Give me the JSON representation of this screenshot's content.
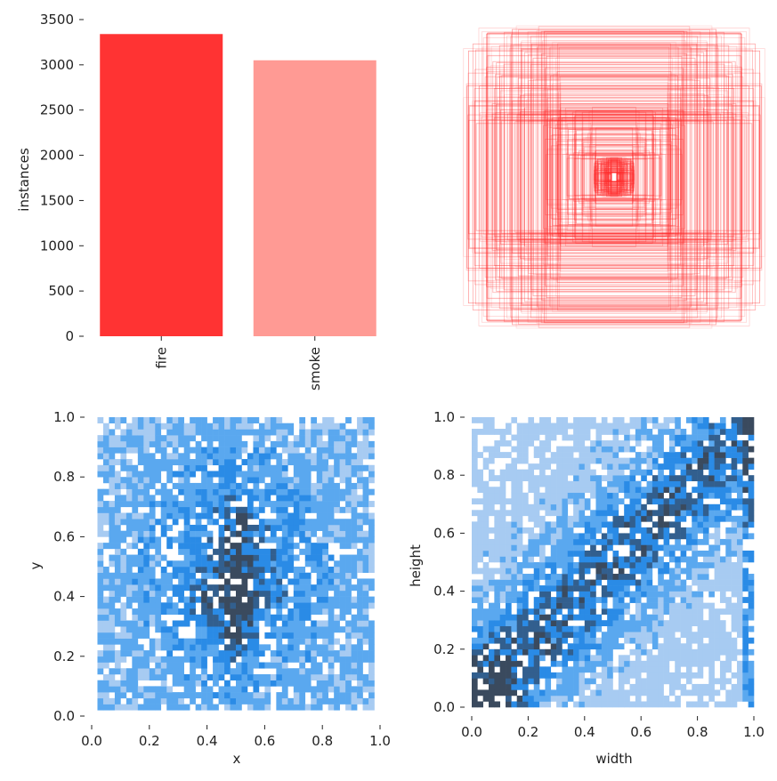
{
  "chart_data": [
    {
      "type": "bar",
      "panel": "class-instances",
      "categories": [
        "fire",
        "smoke"
      ],
      "values": [
        3340,
        3050
      ],
      "colors": [
        "#ff3333",
        "#ff9a94"
      ],
      "xlabel": "",
      "ylabel": "instances",
      "ylim": [
        0,
        3500
      ],
      "yticks": [
        "0",
        "500",
        "1000",
        "1500",
        "2000",
        "2500",
        "3000",
        "3500"
      ],
      "grid": false
    },
    {
      "type": "box-overlay",
      "panel": "label-box-shapes",
      "note_visible": "centered rectangles of varying width and height, red outlines",
      "color": "#ff2a2a",
      "axes_visible": false
    },
    {
      "type": "heatmap",
      "panel": "xy-distribution",
      "xlabel": "x",
      "ylabel": "y",
      "xlim": [
        0,
        1
      ],
      "ylim": [
        0,
        1
      ],
      "xticks": [
        "0.0",
        "0.2",
        "0.4",
        "0.6",
        "0.8",
        "1.0"
      ],
      "yticks": [
        "0.0",
        "0.2",
        "0.4",
        "0.6",
        "0.8",
        "1.0"
      ],
      "bins": 50,
      "colors": [
        "#a7cbf2",
        "#5aa8ef",
        "#2a8be6",
        "#325f8e",
        "#3a4a5e"
      ]
    },
    {
      "type": "heatmap",
      "panel": "width-height-distribution",
      "xlabel": "width",
      "ylabel": "height",
      "xlim": [
        0,
        1
      ],
      "ylim": [
        0,
        1
      ],
      "xticks": [
        "0.0",
        "0.2",
        "0.4",
        "0.6",
        "0.8",
        "1.0"
      ],
      "yticks": [
        "0.0",
        "0.2",
        "0.4",
        "0.6",
        "0.8",
        "1.0"
      ],
      "bins": 50,
      "colors": [
        "#a7cbf2",
        "#5aa8ef",
        "#2a8be6",
        "#325f8e",
        "#3a4a5e"
      ]
    }
  ]
}
